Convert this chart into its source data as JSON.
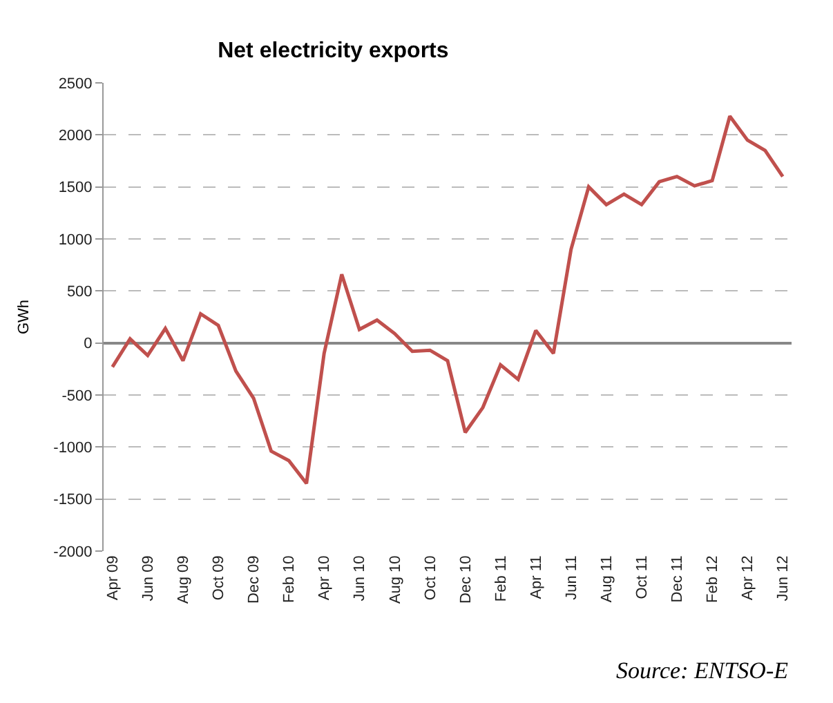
{
  "chart_data": {
    "type": "line",
    "title": "Net electricity exports",
    "ylabel": "GWh",
    "categories": [
      "Apr 09",
      null,
      "Jun 09",
      null,
      "Aug 09",
      null,
      "Oct 09",
      null,
      "Dec 09",
      null,
      "Feb 10",
      null,
      "Apr 10",
      null,
      "Jun 10",
      null,
      "Aug 10",
      null,
      "Oct 10",
      null,
      "Dec 10",
      null,
      "Feb 11",
      null,
      "Apr 11",
      null,
      "Jun 11",
      null,
      "Aug 11",
      null,
      "Oct 11",
      null,
      "Dec 11",
      null,
      "Feb 12",
      null,
      "Apr 12",
      null,
      "Jun 12"
    ],
    "series": [
      {
        "color": "#c0504d",
        "values": [
          -230,
          40,
          -120,
          140,
          -170,
          280,
          170,
          -270,
          -530,
          -1040,
          -1130,
          -1350,
          -100,
          660,
          130,
          220,
          90,
          -80,
          -70,
          -170,
          -860,
          -620,
          -210,
          -350,
          120,
          -100,
          900,
          1500,
          1330,
          1430,
          1330,
          1550,
          1600,
          1510,
          1560,
          2180,
          1950,
          1850,
          1600
        ]
      }
    ],
    "ylim": [
      -2000,
      2500
    ],
    "yticks": [
      -2000,
      -1500,
      -1000,
      -500,
      0,
      500,
      1000,
      1500,
      2000,
      2500
    ],
    "grid": "y",
    "marker": "none",
    "line_style": "solid",
    "annotations": [
      "Source: ENTSO-E"
    ]
  }
}
